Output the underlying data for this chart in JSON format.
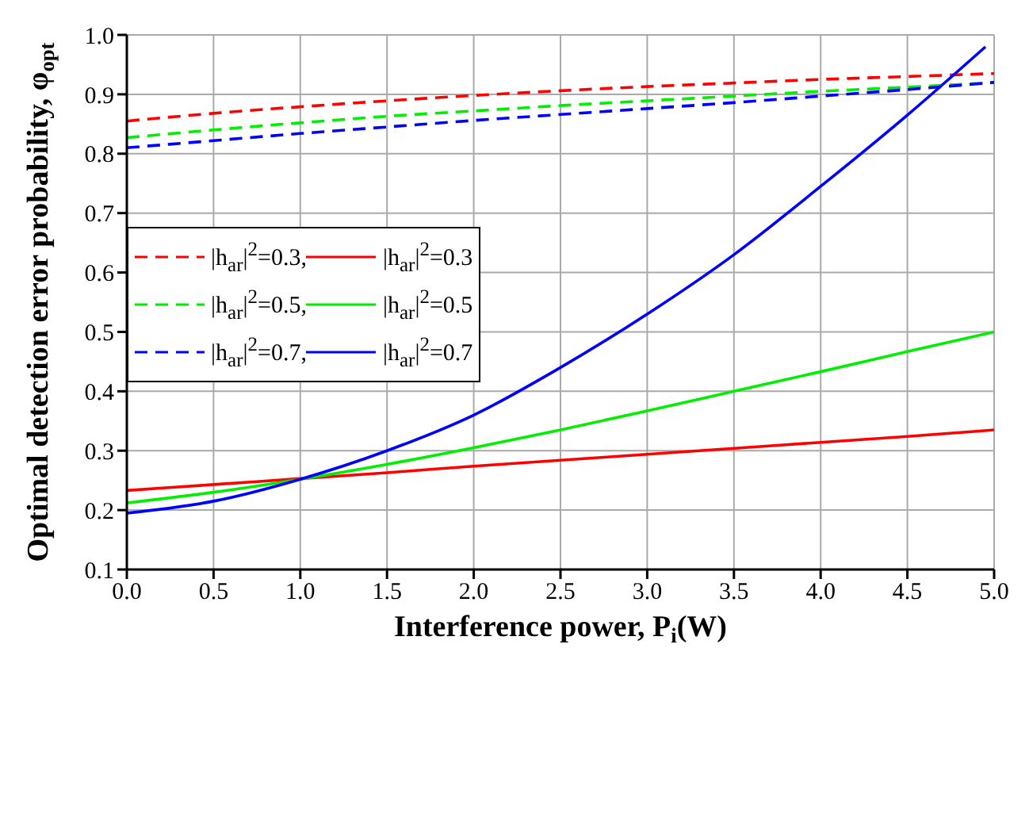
{
  "chart_data": {
    "type": "line",
    "xlabel": "Interference power, P$_{i}$(W)",
    "ylabel": "Optimal detection error probability, φ$_{opt}$",
    "x": [
      0,
      0.5,
      1,
      1.5,
      2,
      2.5,
      3,
      3.5,
      4,
      4.5,
      5
    ],
    "xlim": [
      0,
      5
    ],
    "xticks": [
      {
        "value": 0,
        "label": "0.0"
      },
      0.5,
      {
        "value": 1,
        "label": "1.0"
      },
      1.5,
      {
        "value": 2,
        "label": "2.0"
      },
      2.5,
      {
        "value": 3,
        "label": "3.0"
      },
      3.5,
      {
        "value": 4,
        "label": "4.0"
      },
      4.5,
      {
        "value": 5,
        "label": "5.0"
      }
    ],
    "ylim": [
      0.1,
      1
    ],
    "yticks": [
      0.1,
      0.2,
      0.3,
      0.4,
      0.5,
      0.6,
      0.7,
      0.8,
      0.9,
      {
        "value": 1,
        "label": "1.0"
      }
    ],
    "grid": true,
    "legend": "left",
    "marker": "none",
    "series": [
      {
        "name": "|h$_{ar}$|$^{2}$=0.3,",
        "color": "#ff0000",
        "line_style": "dashed",
        "values": [
          0.855,
          0.868,
          0.879,
          0.889,
          0.898,
          0.906,
          0.913,
          0.919,
          0.925,
          0.93,
          0.935
        ]
      },
      {
        "name": "|h$_{ar}$|$^{2}$=0.3",
        "color": "#ff0000",
        "line_style": "solid",
        "values": [
          0.233,
          0.243,
          0.253,
          0.263,
          0.274,
          0.284,
          0.294,
          0.304,
          0.314,
          0.324,
          0.335
        ]
      },
      {
        "name": "|h$_{ar}$|$^{2}$=0.5,",
        "color": "#00ee00",
        "line_style": "dashed",
        "values": [
          0.827,
          0.84,
          0.852,
          0.863,
          0.872,
          0.881,
          0.889,
          0.897,
          0.905,
          0.912,
          0.92
        ]
      },
      {
        "name": "|h$_{ar}$|$^{2}$=0.5",
        "color": "#00ee00",
        "line_style": "solid",
        "values": [
          0.212,
          0.23,
          0.252,
          0.277,
          0.305,
          0.335,
          0.367,
          0.4,
          0.433,
          0.467,
          0.5
        ]
      },
      {
        "name": "|h$_{ar}$|$^{2}$=0.7,",
        "color": "#0000ff",
        "line_style": "dashed",
        "values": [
          0.81,
          0.822,
          0.834,
          0.845,
          0.856,
          0.866,
          0.876,
          0.886,
          0.897,
          0.908,
          0.92
        ]
      },
      {
        "name": "|h$_{ar}$|$^{2}$=0.7",
        "color": "#0000ff",
        "line_style": "solid",
        "x": [
          0,
          0.5,
          1,
          1.5,
          2,
          2.5,
          3,
          3.5,
          4,
          4.5,
          4.95
        ],
        "values": [
          0.195,
          0.215,
          0.252,
          0.3,
          0.36,
          0.44,
          0.53,
          0.63,
          0.745,
          0.865,
          0.98
        ]
      }
    ]
  }
}
